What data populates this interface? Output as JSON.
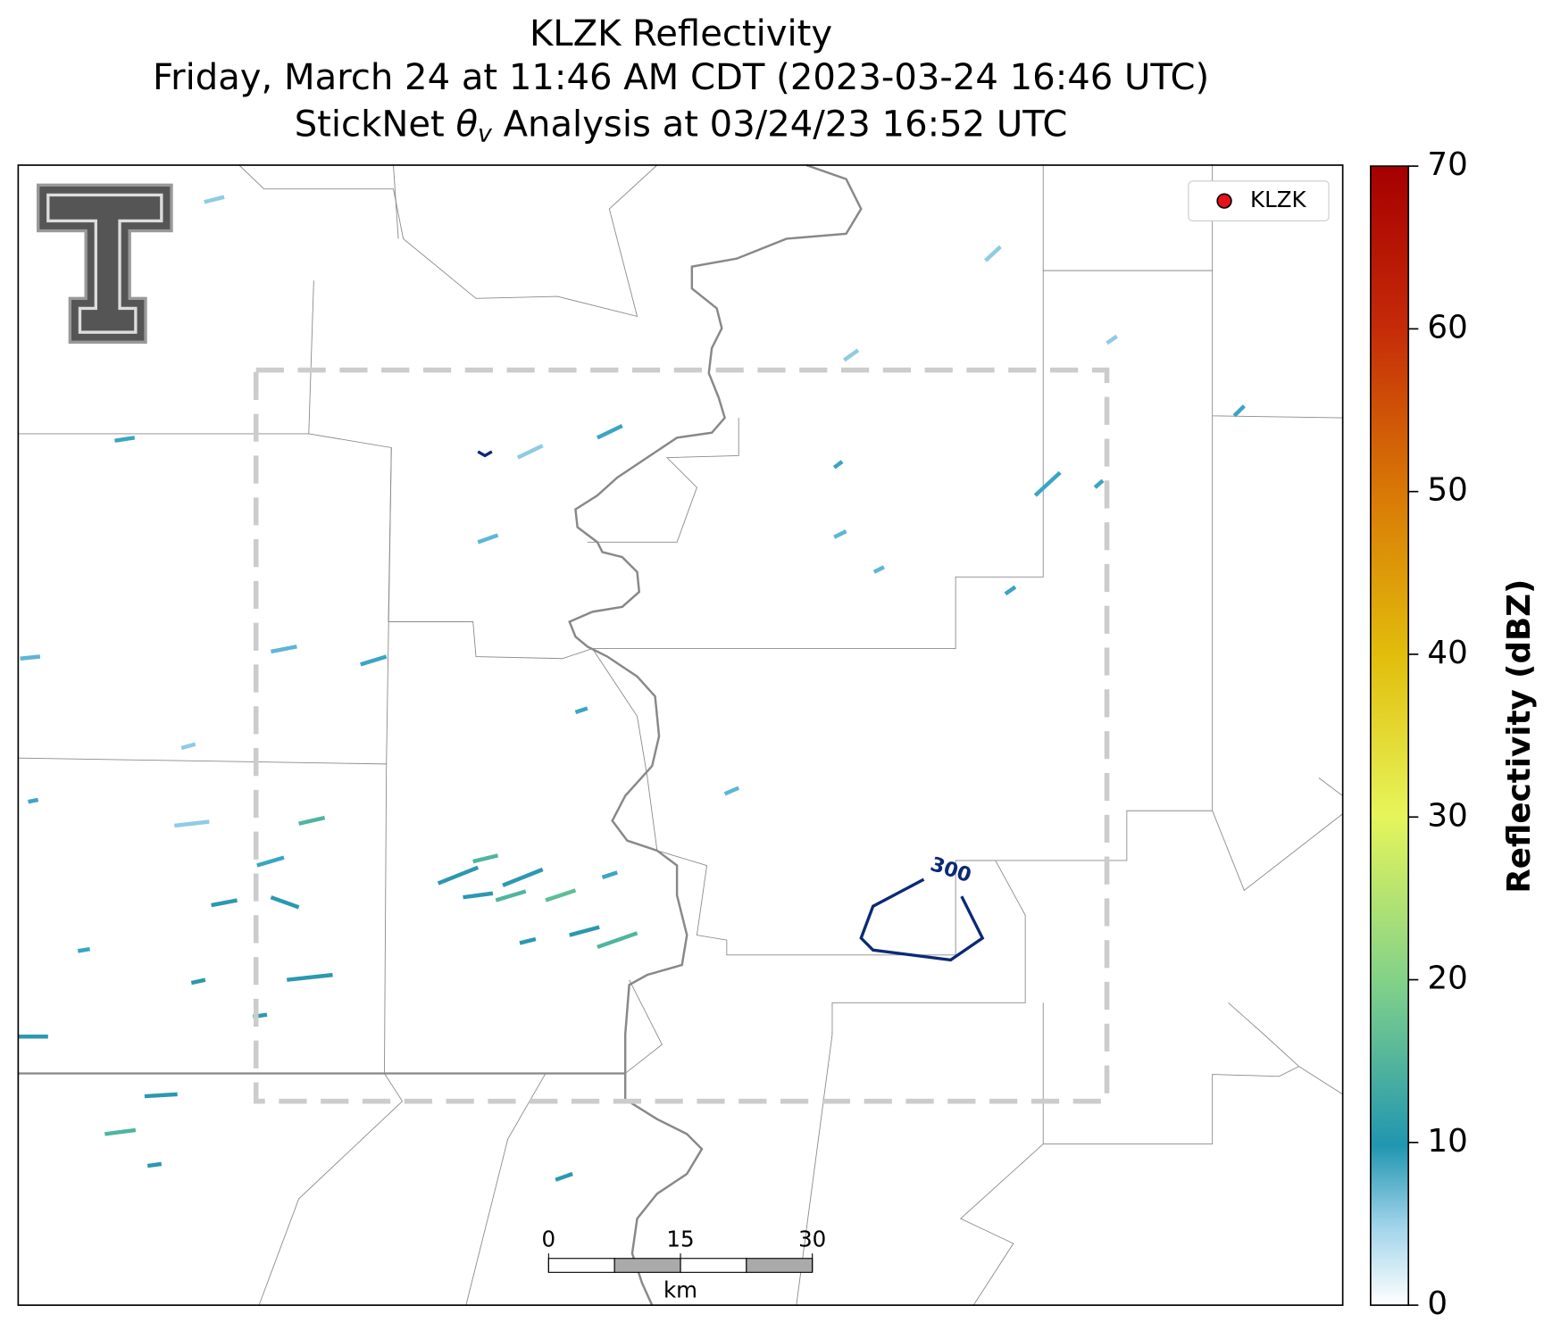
{
  "title": {
    "line1": "KLZK Reflectivity",
    "line2": "Friday, March 24 at 11:46 AM CDT (2023-03-24 16:46 UTC)",
    "line3": {
      "before": "StickNet ",
      "symbol": "θ",
      "subscript": "v",
      "after": " Analysis at 03/24/23 16:52 UTC"
    }
  },
  "legend": {
    "entry": "KLZK"
  },
  "contour_label": "300",
  "scale_bar": {
    "ticks": [
      0,
      15,
      30
    ],
    "range": [
      0,
      30
    ],
    "unit": "km"
  },
  "colorbar": {
    "label": "Reflectivity (dBZ)",
    "lim": [
      0,
      70
    ],
    "ticks": [
      0,
      10,
      20,
      30,
      40,
      50,
      60,
      70
    ]
  }
}
